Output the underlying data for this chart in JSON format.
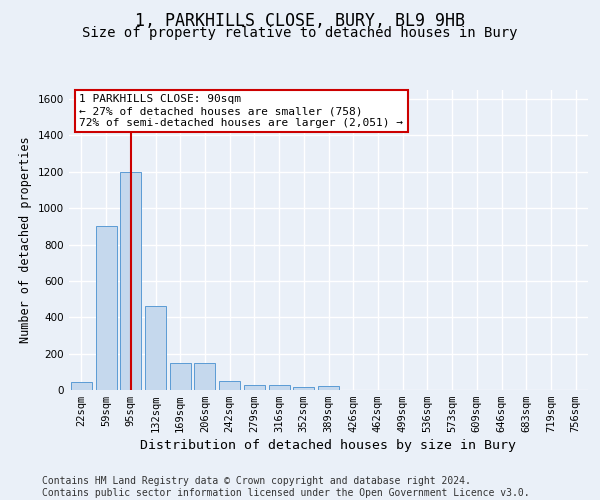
{
  "title": "1, PARKHILLS CLOSE, BURY, BL9 9HB",
  "subtitle": "Size of property relative to detached houses in Bury",
  "xlabel": "Distribution of detached houses by size in Bury",
  "ylabel": "Number of detached properties",
  "categories": [
    "22sqm",
    "59sqm",
    "95sqm",
    "132sqm",
    "169sqm",
    "206sqm",
    "242sqm",
    "279sqm",
    "316sqm",
    "352sqm",
    "389sqm",
    "426sqm",
    "462sqm",
    "499sqm",
    "536sqm",
    "573sqm",
    "609sqm",
    "646sqm",
    "683sqm",
    "719sqm",
    "756sqm"
  ],
  "bar_heights": [
    45,
    900,
    1200,
    460,
    150,
    150,
    50,
    30,
    25,
    15,
    20,
    0,
    0,
    0,
    0,
    0,
    0,
    0,
    0,
    0,
    0
  ],
  "bar_color": "#c5d8ed",
  "bar_edge_color": "#5b9bd5",
  "highlight_bar_index": 2,
  "highlight_line_color": "#cc0000",
  "annotation_text": "1 PARKHILLS CLOSE: 90sqm\n← 27% of detached houses are smaller (758)\n72% of semi-detached houses are larger (2,051) →",
  "annotation_box_color": "#ffffff",
  "annotation_box_edge": "#cc0000",
  "ylim": [
    0,
    1650
  ],
  "yticks": [
    0,
    200,
    400,
    600,
    800,
    1000,
    1200,
    1400,
    1600
  ],
  "footer": "Contains HM Land Registry data © Crown copyright and database right 2024.\nContains public sector information licensed under the Open Government Licence v3.0.",
  "bg_color": "#eaf0f8",
  "plot_bg_color": "#eaf0f8",
  "grid_color": "#ffffff",
  "title_fontsize": 12,
  "subtitle_fontsize": 10,
  "xlabel_fontsize": 9.5,
  "ylabel_fontsize": 8.5,
  "footer_fontsize": 7,
  "tick_fontsize": 7.5,
  "annotation_fontsize": 8
}
